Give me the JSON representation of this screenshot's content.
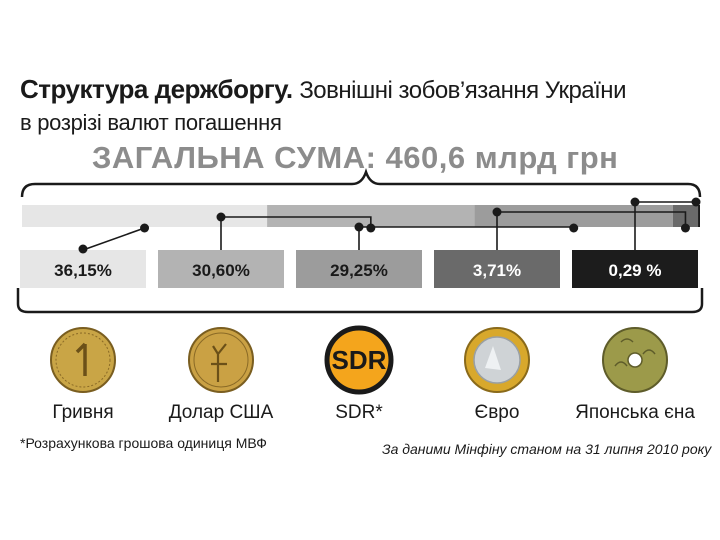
{
  "header": {
    "title_bold": "Структура держборгу.",
    "title_rest": "Зовнішні зобов’язання України",
    "title_line2": "в розрізі валют погашення",
    "total": "ЗАГАЛЬНА СУМА: 460,6 млрд грн"
  },
  "chart_data": {
    "type": "bar",
    "stacked": true,
    "orientation": "horizontal",
    "title": "Структура держборгу.",
    "total": "ЗАГАЛЬНА СУМА: 460,6 млрд грн",
    "unit": "%",
    "categories": [
      "Гривня",
      "Долар США",
      "SDR*",
      "Євро",
      "Японська єна"
    ],
    "values": [
      36.15,
      30.6,
      29.25,
      3.71,
      0.29
    ],
    "value_labels": [
      "36,15%",
      "30,60%",
      "29,25%",
      "3,71%",
      "0,29 %"
    ],
    "colors": [
      "#e6e6e6",
      "#b3b3b3",
      "#9c9c9c",
      "#6a6a6a",
      "#1c1c1c"
    ],
    "label_text_colors": [
      "#1a1a1a",
      "#1a1a1a",
      "#1a1a1a",
      "#ffffff",
      "#ffffff"
    ],
    "icons": [
      "hryvnia-coin-icon",
      "dollar-coin-icon",
      "sdr-badge-icon",
      "euro-coin-icon",
      "yen-coin-icon"
    ],
    "sdr_badge_text": "SDR"
  },
  "footnote": "*Розрахункова грошова одиниця МВФ",
  "source": "За даними Мінфіну станом на 31 липня 2010 року"
}
